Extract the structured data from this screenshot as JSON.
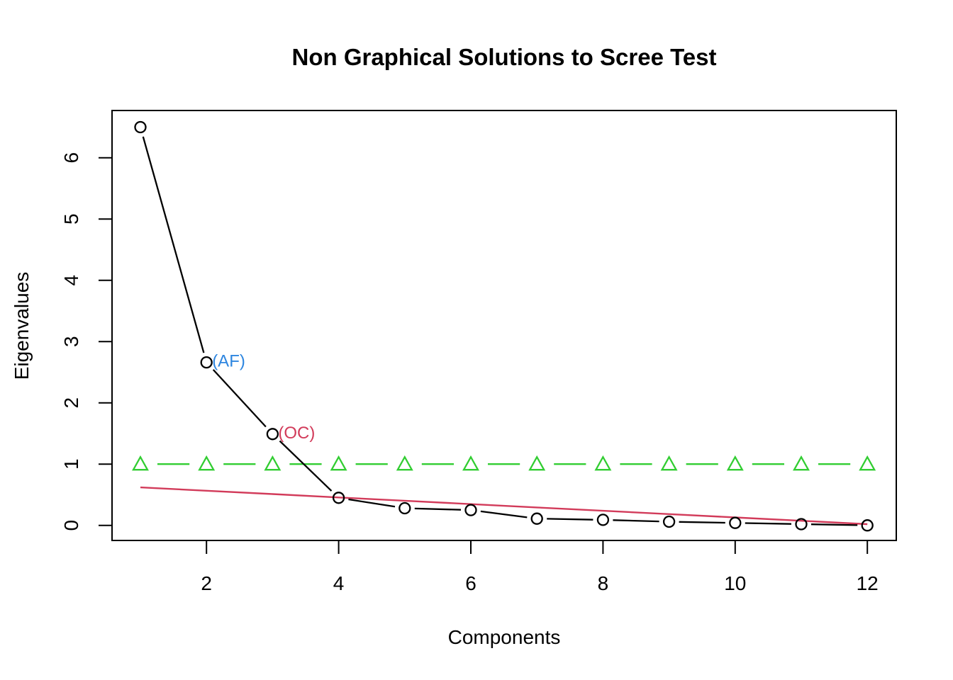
{
  "title": "Non Graphical Solutions to Scree Test",
  "background_color": "#ffffff",
  "chart_data": {
    "type": "line",
    "title": "Non Graphical Solutions to Scree Test",
    "xlabel": "Components",
    "ylabel": "Eigenvalues",
    "x": [
      1,
      2,
      3,
      4,
      5,
      6,
      7,
      8,
      9,
      10,
      11,
      12
    ],
    "xlim": [
      1,
      12
    ],
    "ylim": [
      0,
      6.5
    ],
    "x_ticks": [
      "2",
      "4",
      "6",
      "8",
      "10",
      "12"
    ],
    "x_tick_values": [
      2,
      4,
      6,
      8,
      10,
      12
    ],
    "y_ticks": [
      "0",
      "1",
      "2",
      "3",
      "4",
      "5",
      "6"
    ],
    "y_tick_values": [
      0,
      1,
      2,
      3,
      4,
      5,
      6
    ],
    "grid": false,
    "legend": false,
    "axis_color": "#000000",
    "series": [
      {
        "name": "kaiser-triangle-line",
        "marker": "triangle",
        "line": "dashed-gapped",
        "color": "#32CD32",
        "values": [
          1,
          1,
          1,
          1,
          1,
          1,
          1,
          1,
          1,
          1,
          1,
          1
        ]
      },
      {
        "name": "straight-reference-line",
        "marker": "none",
        "line": "solid",
        "color": "#D23B5A",
        "values": [
          0.62,
          0.565,
          0.511,
          0.456,
          0.402,
          0.347,
          0.293,
          0.238,
          0.184,
          0.129,
          0.075,
          0.02
        ]
      },
      {
        "name": "eigenvalues-scree",
        "marker": "circle",
        "line": "solid-gapped",
        "color": "#000000",
        "values": [
          6.5,
          2.66,
          1.49,
          0.45,
          0.28,
          0.25,
          0.11,
          0.09,
          0.06,
          0.04,
          0.02,
          0.0
        ]
      }
    ],
    "annotations": [
      {
        "text": "(AF)",
        "x": 2,
        "y": 2.66,
        "color": "#2E86E0"
      },
      {
        "text": "(OC)",
        "x": 3,
        "y": 1.49,
        "color": "#D23B5A"
      }
    ]
  }
}
